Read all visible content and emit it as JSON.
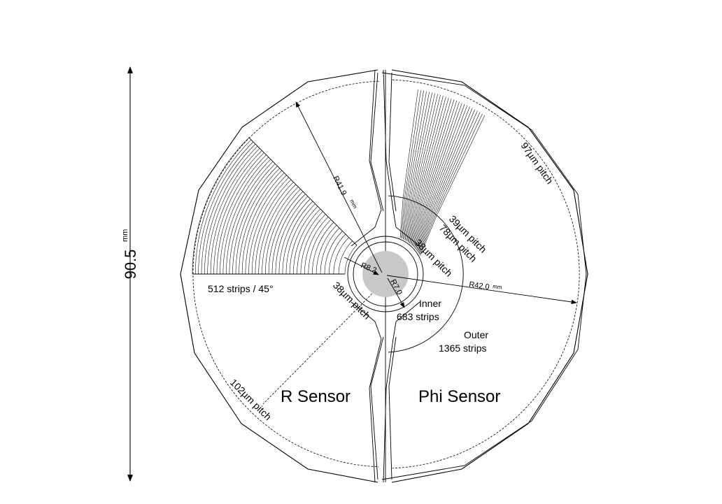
{
  "dimension": {
    "value": "90.5",
    "unit": "mm"
  },
  "radii": {
    "r_outer_R": {
      "value": "R41.9",
      "unit": "mm"
    },
    "r_outer_Phi": {
      "value": "R42.0",
      "unit": "mm"
    },
    "r_inner_R": "R8.2",
    "r_inner_beam": "R7.0"
  },
  "labels": {
    "r_sensor": "R Sensor",
    "phi_sensor": "Phi Sensor",
    "strips_per_sector": "512 strips / 45°",
    "pitch_102": "102µm pitch",
    "pitch_38_bottom": "38µm pitch",
    "pitch_38_top": "38µm pitch",
    "pitch_39": "39µm pitch",
    "pitch_78": "78µm pitch",
    "pitch_97": "97µm pitch",
    "inner_title": "Inner",
    "inner_strips": "683 strips",
    "outer_title": "Outer",
    "outer_strips": "1365 strips"
  }
}
